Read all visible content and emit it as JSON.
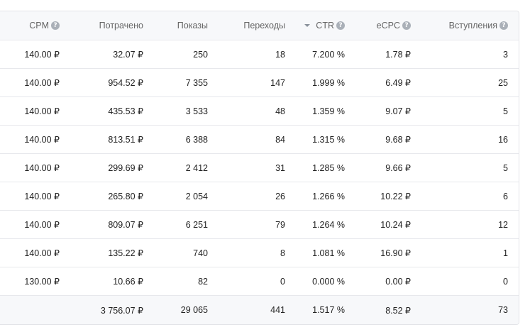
{
  "columns": [
    {
      "key": "cpm",
      "label": "CPM",
      "help": true
    },
    {
      "key": "spent",
      "label": "Потрачено",
      "help": false
    },
    {
      "key": "impressions",
      "label": "Показы",
      "help": false
    },
    {
      "key": "clicks",
      "label": "Переходы",
      "help": false
    },
    {
      "key": "ctr",
      "label": "CTR",
      "help": true,
      "sorted": "desc"
    },
    {
      "key": "ecpc",
      "label": "eCPC",
      "help": true
    },
    {
      "key": "joins",
      "label": "Вступления",
      "help": true
    }
  ],
  "rows": [
    {
      "cpm": "140.00 ₽",
      "spent": "32.07 ₽",
      "impressions": "250",
      "clicks": "18",
      "ctr": "7.200 %",
      "ecpc": "1.78 ₽",
      "joins": "3"
    },
    {
      "cpm": "140.00 ₽",
      "spent": "954.52 ₽",
      "impressions": "7 355",
      "clicks": "147",
      "ctr": "1.999 %",
      "ecpc": "6.49 ₽",
      "joins": "25"
    },
    {
      "cpm": "140.00 ₽",
      "spent": "435.53 ₽",
      "impressions": "3 533",
      "clicks": "48",
      "ctr": "1.359 %",
      "ecpc": "9.07 ₽",
      "joins": "5"
    },
    {
      "cpm": "140.00 ₽",
      "spent": "813.51 ₽",
      "impressions": "6 388",
      "clicks": "84",
      "ctr": "1.315 %",
      "ecpc": "9.68 ₽",
      "joins": "16"
    },
    {
      "cpm": "140.00 ₽",
      "spent": "299.69 ₽",
      "impressions": "2 412",
      "clicks": "31",
      "ctr": "1.285 %",
      "ecpc": "9.66 ₽",
      "joins": "5"
    },
    {
      "cpm": "140.00 ₽",
      "spent": "265.80 ₽",
      "impressions": "2 054",
      "clicks": "26",
      "ctr": "1.266 %",
      "ecpc": "10.22 ₽",
      "joins": "6"
    },
    {
      "cpm": "140.00 ₽",
      "spent": "809.07 ₽",
      "impressions": "6 251",
      "clicks": "79",
      "ctr": "1.264 %",
      "ecpc": "10.24 ₽",
      "joins": "12"
    },
    {
      "cpm": "140.00 ₽",
      "spent": "135.22 ₽",
      "impressions": "740",
      "clicks": "8",
      "ctr": "1.081 %",
      "ecpc": "16.90 ₽",
      "joins": "1"
    },
    {
      "cpm": "130.00 ₽",
      "spent": "10.66 ₽",
      "impressions": "82",
      "clicks": "0",
      "ctr": "0.000 %",
      "ecpc": "0.00 ₽",
      "joins": "0"
    }
  ],
  "totals": {
    "cpm": "",
    "spent": "3 756.07 ₽",
    "impressions": "29 065",
    "clicks": "441",
    "ctr": "1.517 %",
    "ecpc": "8.52 ₽",
    "joins": "73"
  },
  "icons": {
    "help": "question-circle-icon",
    "sort": "sort-desc-icon"
  },
  "colors": {
    "header_bg": "#f7f8fa",
    "border": "#e7e8ec",
    "header_text": "#656565",
    "help_icon": "#aab0b8"
  }
}
